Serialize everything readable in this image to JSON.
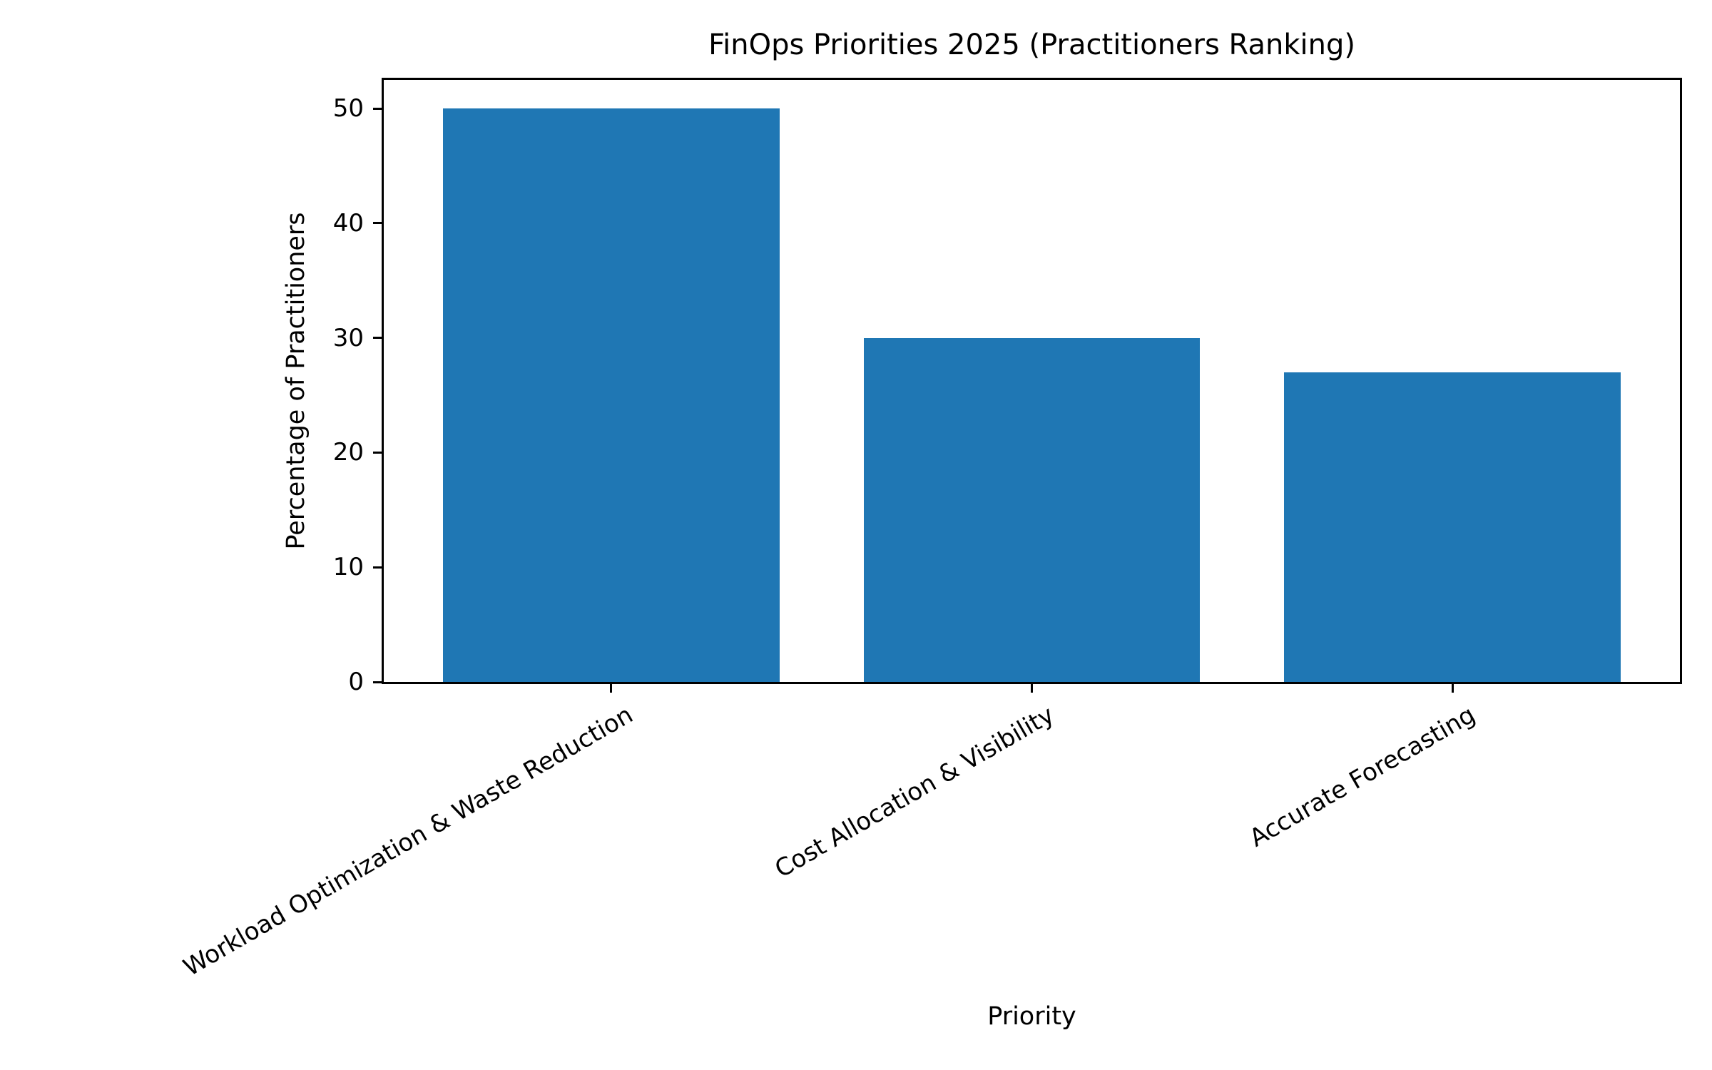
{
  "chart_data": {
    "type": "bar",
    "title": "FinOps Priorities 2025 (Practitioners Ranking)",
    "xlabel": "Priority",
    "ylabel": "Percentage of Practitioners",
    "categories": [
      "Workload Optimization & Waste Reduction",
      "Cost Allocation & Visibility",
      "Accurate Forecasting"
    ],
    "values": [
      50,
      30,
      27
    ],
    "yticks": [
      0,
      10,
      20,
      30,
      40,
      50
    ],
    "ylim": [
      0,
      52.5
    ],
    "xtick_rotation_deg": 30,
    "bar_color": "#1f77b4",
    "axis_color": "#000000",
    "background_color": "#ffffff",
    "grid": false,
    "legend": "none"
  }
}
